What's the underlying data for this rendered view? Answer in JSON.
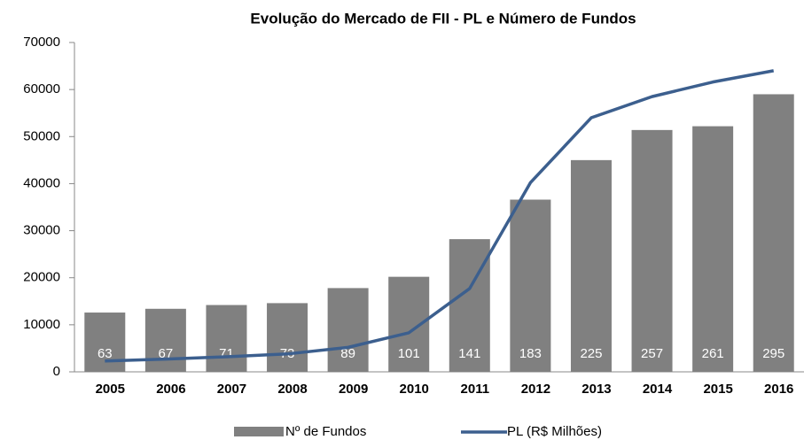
{
  "chart_data": {
    "type": "bar_line",
    "title": "Evolução do Mercado de FII - PL e Número de Fundos",
    "categories": [
      "2005",
      "2006",
      "2007",
      "2008",
      "2009",
      "2010",
      "2011",
      "2012",
      "2013",
      "2014",
      "2015",
      "2016"
    ],
    "series": [
      {
        "name": "Nº de Fundos",
        "type": "bar",
        "axis": "y2",
        "color": "#808080",
        "values": [
          63,
          67,
          71,
          73,
          89,
          101,
          141,
          183,
          225,
          257,
          261,
          295
        ]
      },
      {
        "name": "PL (R$ Milhões)",
        "type": "line",
        "color": "#3c5f8e",
        "values": [
          2300,
          2700,
          3200,
          3800,
          5200,
          8300,
          17700,
          40200,
          54000,
          58500,
          61600,
          64000
        ]
      }
    ],
    "ylim": [
      0,
      70000
    ],
    "yticks": [
      0,
      10000,
      20000,
      30000,
      40000,
      50000,
      60000,
      70000
    ],
    "y2lim": [
      0,
      350
    ],
    "legend": "bottom"
  }
}
